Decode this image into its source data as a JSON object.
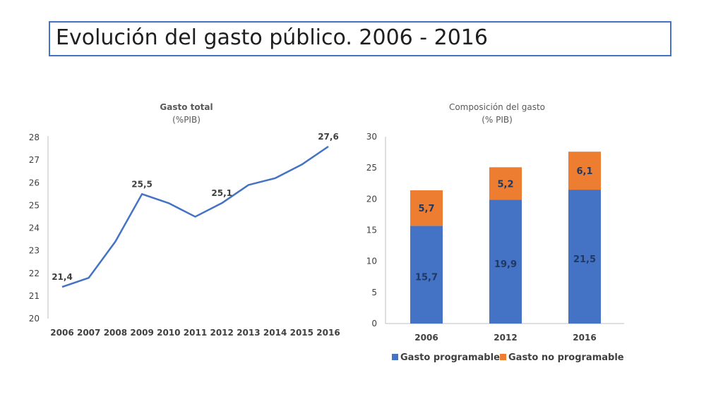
{
  "slide": {
    "title": "Evolución del gasto público. 2006 - 2016"
  },
  "colors": {
    "line": "#4472c4",
    "programable": "#4472c4",
    "no_programable": "#ed7d31",
    "axis": "#bfbfbf",
    "title_border": "#4472c4"
  },
  "chart_data": [
    {
      "type": "line",
      "title": "Gasto total",
      "subtitle": "(%PIB)",
      "x": [
        "2006",
        "2007",
        "2008",
        "2009",
        "2010",
        "2011",
        "2012",
        "2013",
        "2014",
        "2015",
        "2016"
      ],
      "values": [
        21.4,
        21.8,
        23.4,
        25.5,
        25.1,
        24.5,
        25.1,
        25.9,
        26.2,
        26.8,
        27.6
      ],
      "ylim": [
        20,
        28
      ],
      "yticks": [
        "20",
        "21",
        "22",
        "23",
        "24",
        "25",
        "26",
        "27",
        "28"
      ],
      "data_labels": [
        {
          "index": 0,
          "text": "21,4"
        },
        {
          "index": 3,
          "text": "25,5"
        },
        {
          "index": 6,
          "text": "25,1"
        },
        {
          "index": 10,
          "text": "27,6"
        }
      ],
      "grid": false
    },
    {
      "type": "bar",
      "stacked": true,
      "title": "Composición del gasto",
      "subtitle": "(% PIB)",
      "categories": [
        "2006",
        "2012",
        "2016"
      ],
      "series": [
        {
          "name": "Gasto programable",
          "values": [
            15.7,
            19.9,
            21.5
          ],
          "labels": [
            "15,7",
            "19,9",
            "21,5"
          ]
        },
        {
          "name": "Gasto no programable",
          "values": [
            5.7,
            5.2,
            6.1
          ],
          "labels": [
            "5,7",
            "5,2",
            "6,1"
          ]
        }
      ],
      "ylim": [
        0,
        30
      ],
      "yticks": [
        "0",
        "5",
        "10",
        "15",
        "20",
        "25",
        "30"
      ],
      "legend": "bottom",
      "grid": false
    }
  ]
}
